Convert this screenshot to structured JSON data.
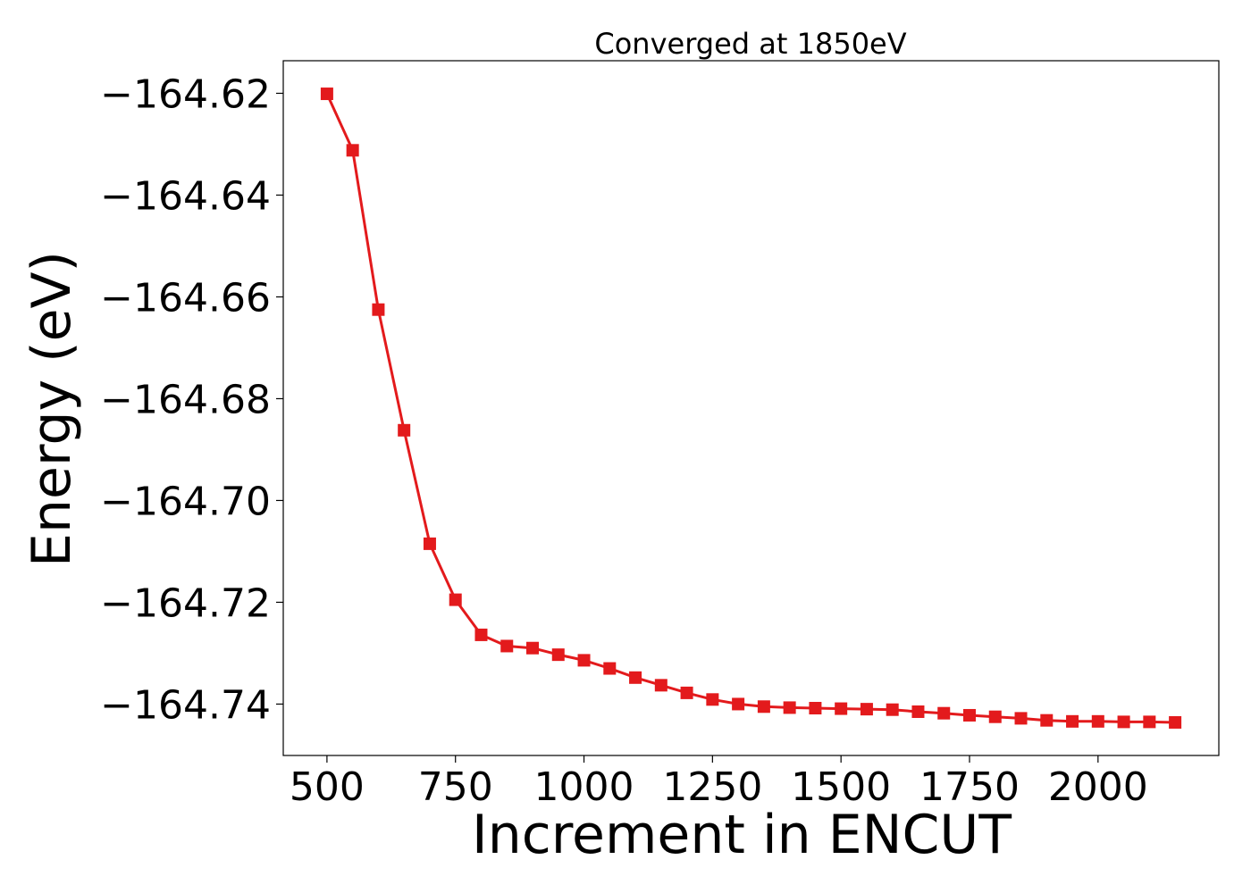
{
  "chart_data": {
    "type": "line",
    "title": "Converged at 1850eV",
    "xlabel": "Increment in ENCUT",
    "ylabel": "Energy (eV)",
    "xlim": [
      415,
      2235
    ],
    "ylim": [
      -164.7501,
      -164.6136
    ],
    "grid": false,
    "legend": "none",
    "marker": "square",
    "color": "#e31a1c",
    "x_ticks": [
      500,
      750,
      1000,
      1250,
      1500,
      1750,
      2000
    ],
    "x_tick_labels": [
      "500",
      "750",
      "1000",
      "1250",
      "1500",
      "1750",
      "2000"
    ],
    "y_ticks": [
      -164.62,
      -164.64,
      -164.66,
      -164.68,
      -164.7,
      -164.72,
      -164.74
    ],
    "y_tick_labels": [
      "−164.62",
      "−164.64",
      "−164.66",
      "−164.68",
      "−164.70",
      "−164.72",
      "−164.74"
    ],
    "series": [
      {
        "x": [
          500,
          550,
          600,
          650,
          700,
          750,
          800,
          850,
          900,
          950,
          1000,
          1050,
          1100,
          1150,
          1200,
          1250,
          1300,
          1350,
          1400,
          1450,
          1500,
          1550,
          1600,
          1650,
          1700,
          1750,
          1800,
          1850,
          1900,
          1950,
          2000,
          2050,
          2100,
          2150
        ],
        "values": [
          -164.6201,
          -164.6312,
          -164.6625,
          -164.6862,
          -164.7085,
          -164.7195,
          -164.7264,
          -164.7286,
          -164.729,
          -164.7303,
          -164.7314,
          -164.733,
          -164.7348,
          -164.7363,
          -164.7378,
          -164.7391,
          -164.74,
          -164.7405,
          -164.7407,
          -164.7408,
          -164.7409,
          -164.741,
          -164.7411,
          -164.7415,
          -164.7418,
          -164.7422,
          -164.7425,
          -164.7428,
          -164.7432,
          -164.7434,
          -164.7434,
          -164.7435,
          -164.7435,
          -164.7436
        ]
      }
    ]
  }
}
